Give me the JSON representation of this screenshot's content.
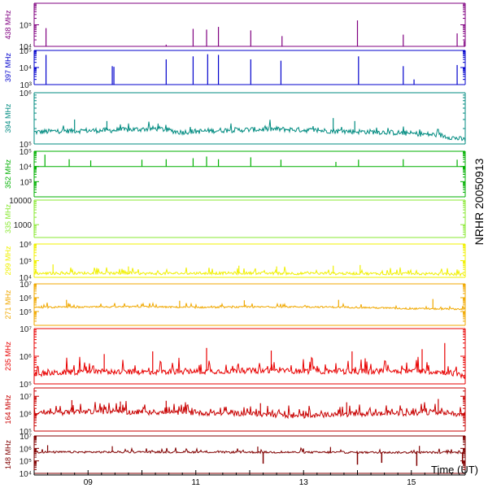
{
  "chart_data": {
    "type": "line",
    "title": "",
    "side_label": "NRHR 20050913",
    "xlabel": "Time (UT)",
    "x_range": [
      8.0,
      16.0
    ],
    "x_ticks": [
      9,
      11,
      13,
      15
    ],
    "x_tick_labels": [
      "09",
      "11",
      "13",
      "15"
    ],
    "y_scale": "log",
    "panels": [
      {
        "freq_label": "438 MHz",
        "color": "#800080",
        "ylim": [
          10000,
          1000000
        ],
        "ticks": [
          {
            "v": 10000,
            "label": "10⁴"
          },
          {
            "v": 100000,
            "label": "10⁵"
          }
        ],
        "style": "spiky",
        "baseline": 10000,
        "noise": 0.003,
        "spikes": [
          [
            8.22,
            70000
          ],
          [
            10.45,
            12000
          ],
          [
            10.95,
            65000
          ],
          [
            11.2,
            60000
          ],
          [
            11.42,
            80000
          ],
          [
            12.02,
            55000
          ],
          [
            12.6,
            30000
          ],
          [
            14.0,
            160000
          ],
          [
            14.85,
            35000
          ],
          [
            15.85,
            40000
          ],
          [
            15.98,
            18000
          ]
        ]
      },
      {
        "freq_label": "397 MHz",
        "color": "#0000cc",
        "ylim": [
          1000,
          100000
        ],
        "ticks": [
          {
            "v": 1000,
            "label": "10³"
          },
          {
            "v": 10000,
            "label": "10⁴"
          },
          {
            "v": 100000,
            "label": "10⁵"
          }
        ],
        "style": "spiky",
        "baseline": 1000,
        "noise": 0.003,
        "spikes": [
          [
            8.22,
            55000
          ],
          [
            9.45,
            12000
          ],
          [
            9.48,
            11000
          ],
          [
            10.45,
            30000
          ],
          [
            10.95,
            45000
          ],
          [
            11.22,
            60000
          ],
          [
            11.42,
            55000
          ],
          [
            12.02,
            30000
          ],
          [
            12.58,
            25000
          ],
          [
            14.02,
            45000
          ],
          [
            14.85,
            12000
          ],
          [
            15.05,
            2000
          ],
          [
            15.85,
            14000
          ]
        ]
      },
      {
        "freq_label": "394 MHz",
        "color": "#008b80",
        "ylim": [
          100000,
          1000000
        ],
        "ticks": [
          {
            "v": 100000,
            "label": "10⁵"
          },
          {
            "v": 1000000,
            "label": "10⁶"
          }
        ],
        "style": "noisy",
        "noise": 0.05,
        "spike_rate": 0.05,
        "spike_amp": 0.15,
        "level": [
          [
            8.0,
            170000
          ],
          [
            8.5,
            180000
          ],
          [
            9.5,
            185000
          ],
          [
            10.3,
            200000
          ],
          [
            10.7,
            170000
          ],
          [
            11.5,
            185000
          ],
          [
            12.5,
            195000
          ],
          [
            13.5,
            180000
          ],
          [
            14.5,
            170000
          ],
          [
            15.5,
            150000
          ],
          [
            16.0,
            120000
          ]
        ],
        "spikes": [
          [
            8.75,
            300000
          ],
          [
            9.35,
            280000
          ],
          [
            10.3,
            250000
          ],
          [
            13.55,
            320000
          ],
          [
            13.95,
            280000
          ]
        ]
      },
      {
        "freq_label": "352 MHz",
        "color": "#00b000",
        "ylim": [
          100,
          100000
        ],
        "ticks": [
          {
            "v": 1000,
            "label": "10³"
          },
          {
            "v": 10000,
            "label": "10⁴"
          },
          {
            "v": 100000,
            "label": "10⁵"
          }
        ],
        "style": "spiky",
        "baseline": 10000,
        "noise": 0.003,
        "spikes": [
          [
            8.2,
            60000
          ],
          [
            8.65,
            30000
          ],
          [
            9.05,
            25000
          ],
          [
            10.0,
            28000
          ],
          [
            10.45,
            30000
          ],
          [
            10.95,
            35000
          ],
          [
            11.2,
            45000
          ],
          [
            11.42,
            30000
          ],
          [
            12.02,
            40000
          ],
          [
            12.58,
            28000
          ],
          [
            13.6,
            20000
          ],
          [
            14.02,
            28000
          ],
          [
            14.85,
            30000
          ],
          [
            15.85,
            28000
          ]
        ]
      },
      {
        "freq_label": "335 MHz",
        "color": "#88e830",
        "ylim": [
          300,
          10000
        ],
        "ticks": [
          {
            "v": 1000,
            "label": "1000"
          },
          {
            "v": 10000,
            "label": "10000"
          }
        ],
        "style": "flat",
        "baseline": 10000,
        "spikes": []
      },
      {
        "freq_label": "299 MHz",
        "color": "#f0f000",
        "ylim": [
          10000,
          1000000
        ],
        "ticks": [
          {
            "v": 10000,
            "label": "10⁴"
          },
          {
            "v": 100000,
            "label": "10⁵"
          },
          {
            "v": 1000000,
            "label": "10⁶"
          }
        ],
        "style": "noisy",
        "noise": 0.08,
        "spike_rate": 0.12,
        "spike_amp": 0.35,
        "level": [
          [
            8.0,
            17000
          ],
          [
            9.0,
            18000
          ],
          [
            10.0,
            17000
          ],
          [
            11.0,
            17500
          ],
          [
            12.0,
            18000
          ],
          [
            13.0,
            17000
          ],
          [
            14.0,
            17000
          ],
          [
            15.0,
            16500
          ],
          [
            16.0,
            15000
          ]
        ],
        "spikes": [
          [
            8.35,
            60000
          ],
          [
            9.75,
            45000
          ],
          [
            11.8,
            50000
          ],
          [
            12.5,
            45000
          ],
          [
            13.55,
            50000
          ],
          [
            14.05,
            55000
          ]
        ]
      },
      {
        "freq_label": "271 MHz",
        "color": "#f0a800",
        "ylim": [
          10000,
          10000000
        ],
        "ticks": [
          {
            "v": 100000,
            "label": "10⁵"
          },
          {
            "v": 1000000,
            "label": "10⁶"
          },
          {
            "v": 10000000,
            "label": "10⁷"
          }
        ],
        "style": "noisy",
        "noise": 0.06,
        "spike_rate": 0.1,
        "spike_amp": 0.3,
        "level": [
          [
            8.0,
            200000
          ],
          [
            9.0,
            210000
          ],
          [
            10.0,
            220000
          ],
          [
            11.0,
            200000
          ],
          [
            12.0,
            210000
          ],
          [
            13.0,
            220000
          ],
          [
            14.0,
            200000
          ],
          [
            15.0,
            160000
          ],
          [
            16.0,
            150000
          ]
        ],
        "spikes": [
          [
            8.6,
            700000
          ],
          [
            10.7,
            600000
          ],
          [
            11.9,
            650000
          ],
          [
            13.65,
            700000
          ],
          [
            15.4,
            800000
          ]
        ]
      },
      {
        "freq_label": "235 MHz",
        "color": "#e80000",
        "ylim": [
          100000,
          10000000
        ],
        "ticks": [
          {
            "v": 100000,
            "label": "10⁵"
          },
          {
            "v": 1000000,
            "label": "10⁶"
          },
          {
            "v": 10000000,
            "label": "10⁷"
          }
        ],
        "style": "noisy",
        "noise": 0.1,
        "spike_rate": 0.18,
        "spike_amp": 0.45,
        "level": [
          [
            8.0,
            230000
          ],
          [
            9.0,
            280000
          ],
          [
            10.0,
            270000
          ],
          [
            11.0,
            280000
          ],
          [
            12.0,
            300000
          ],
          [
            13.0,
            290000
          ],
          [
            14.0,
            280000
          ],
          [
            15.0,
            300000
          ],
          [
            15.7,
            260000
          ],
          [
            16.0,
            190000
          ]
        ],
        "spikes": [
          [
            9.3,
            1200000
          ],
          [
            10.2,
            1500000
          ],
          [
            11.2,
            2000000
          ],
          [
            12.4,
            1600000
          ],
          [
            13.9,
            1500000
          ],
          [
            15.2,
            1800000
          ],
          [
            15.62,
            3000000
          ]
        ]
      },
      {
        "freq_label": "164 MHz",
        "color": "#c80000",
        "ylim": [
          100000,
          30000000
        ],
        "ticks": [
          {
            "v": 100000,
            "label": "10⁵"
          },
          {
            "v": 1000000,
            "label": "10⁶"
          },
          {
            "v": 10000000,
            "label": "10⁷"
          }
        ],
        "style": "noisy",
        "noise": 0.14,
        "spike_rate": 0.2,
        "spike_amp": 0.5,
        "level": [
          [
            8.0,
            1000000
          ],
          [
            9.0,
            1300000
          ],
          [
            10.0,
            1200000
          ],
          [
            11.0,
            1100000
          ],
          [
            12.0,
            1000000
          ],
          [
            13.0,
            700000
          ],
          [
            13.5,
            900000
          ],
          [
            14.5,
            1000000
          ],
          [
            15.5,
            1100000
          ],
          [
            16.0,
            900000
          ]
        ],
        "spikes": [
          [
            8.7,
            6000000
          ],
          [
            9.6,
            5000000
          ],
          [
            10.45,
            5500000
          ],
          [
            12.2,
            4000000
          ],
          [
            13.8,
            4500000
          ],
          [
            15.5,
            7000000
          ]
        ]
      },
      {
        "freq_label": "148 MHz",
        "color": "#800000",
        "ylim": [
          10000,
          10000000
        ],
        "ticks": [
          {
            "v": 10000,
            "label": "10⁴"
          },
          {
            "v": 100000,
            "label": "10⁵"
          },
          {
            "v": 1000000,
            "label": "10⁶"
          },
          {
            "v": 10000000,
            "label": "10⁷"
          }
        ],
        "style": "noisy",
        "noise": 0.08,
        "spike_rate": 0.08,
        "spike_amp": 0.3,
        "level": [
          [
            8.0,
            500000
          ],
          [
            10.0,
            520000
          ],
          [
            12.0,
            500000
          ],
          [
            14.0,
            480000
          ],
          [
            16.0,
            470000
          ]
        ],
        "spikes": [
          [
            8.25,
            1800000
          ],
          [
            9.45,
            1500000
          ],
          [
            12.15,
            1400000
          ],
          [
            13.5,
            1300000
          ],
          [
            15.15,
            1600000
          ]
        ],
        "dips": [
          [
            12.25,
            60000
          ],
          [
            14.0,
            50000
          ],
          [
            14.45,
            70000
          ],
          [
            15.1,
            40000
          ],
          [
            15.95,
            60000
          ]
        ]
      }
    ]
  }
}
